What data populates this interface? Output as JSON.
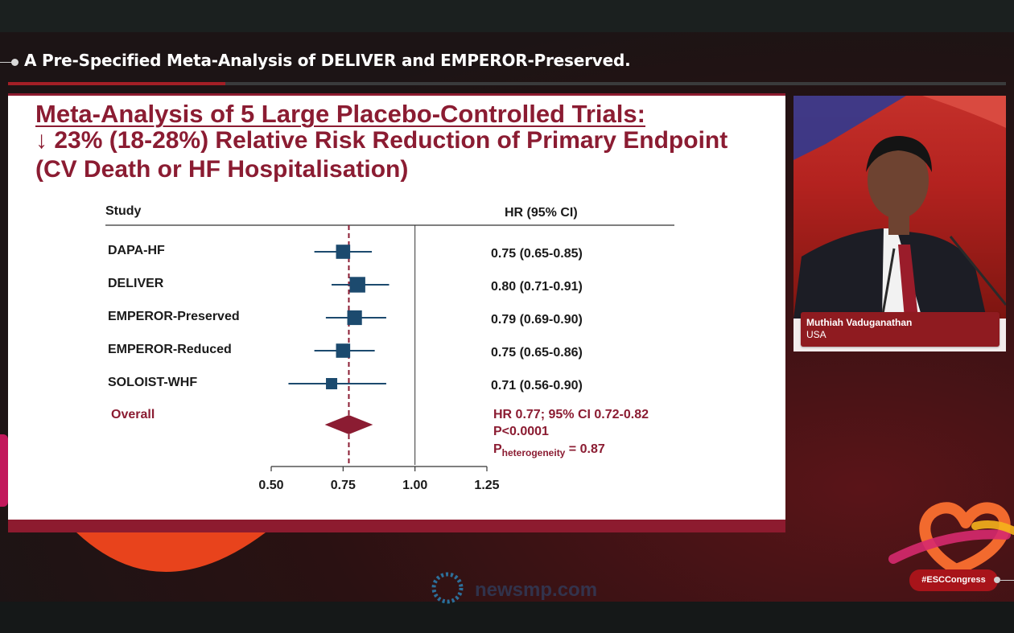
{
  "headline": "A Pre-Specified Meta-Analysis of DELIVER and EMPEROR-Preserved.",
  "slide": {
    "title_line1": "Meta-Analysis of 5 Large Placebo-Controlled Trials:",
    "title_line2": "↓ 23% (18-28%) Relative Risk Reduction of Primary Endpoint",
    "title_line3": "(CV Death or HF Hospitalisation)"
  },
  "chart_data": {
    "type": "forest",
    "col_study": "Study",
    "col_hr": "HR (95% CI)",
    "studies": [
      {
        "name": "DAPA-HF",
        "hr": 0.75,
        "lo": 0.65,
        "hi": 0.85,
        "label": "0.75 (0.65-0.85)",
        "weight": 0.8
      },
      {
        "name": "DELIVER",
        "hr": 0.8,
        "lo": 0.71,
        "hi": 0.91,
        "label": "0.80 (0.71-0.91)",
        "weight": 0.95
      },
      {
        "name": "EMPEROR-Preserved",
        "hr": 0.79,
        "lo": 0.69,
        "hi": 0.9,
        "label": "0.79 (0.69-0.90)",
        "weight": 0.85
      },
      {
        "name": "EMPEROR-Reduced",
        "hr": 0.75,
        "lo": 0.65,
        "hi": 0.86,
        "label": "0.75 (0.65-0.86)",
        "weight": 0.8
      },
      {
        "name": "SOLOIST-WHF",
        "hr": 0.71,
        "lo": 0.56,
        "hi": 0.9,
        "label": "0.71 (0.56-0.90)",
        "weight": 0.5
      }
    ],
    "overall": {
      "name": "Overall",
      "hr": 0.77,
      "lo": 0.72,
      "hi": 0.82,
      "text_line1": "HR 0.77; 95% CI 0.72-0.82",
      "text_line2": "P<0.0001",
      "p_het_prefix": "P",
      "p_het_sub": "heterogeneity",
      "p_het_value": " = 0.87"
    },
    "x_ticks": [
      {
        "value": 0.5,
        "label": "0.50"
      },
      {
        "value": 0.75,
        "label": "0.75"
      },
      {
        "value": 1.0,
        "label": "1.00"
      },
      {
        "value": 1.25,
        "label": "1.25"
      }
    ],
    "reference_line": 1.0,
    "dashed_line": 0.77,
    "colors": {
      "marker": "#1c4a6e",
      "overall": "#8b1c32",
      "text": "#1a1a1a",
      "axis": "#333333"
    }
  },
  "speaker": {
    "name": "Muthiah Vaduganathan",
    "country": "USA"
  },
  "watermark_text": "newsmp.com",
  "hashtag": "#ESCCongress"
}
